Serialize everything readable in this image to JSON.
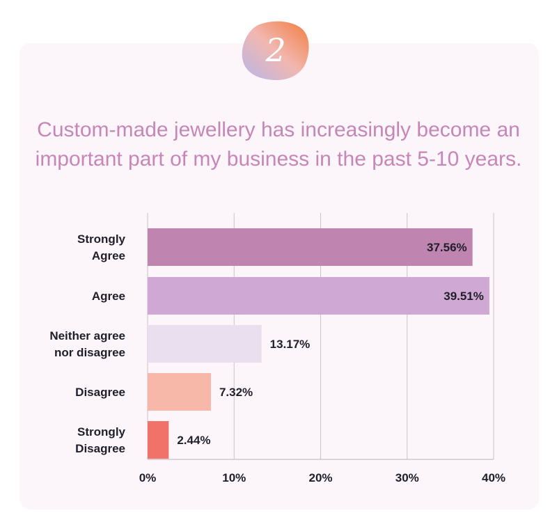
{
  "badge": {
    "number": "2"
  },
  "title_lines": [
    "Custom-made jewellery has increasingly become an",
    "important part of my business in the past 5-10 years."
  ],
  "chart_data": {
    "type": "bar",
    "orientation": "horizontal",
    "title": "Custom-made jewellery has increasingly become an important part of my business in the past 5-10 years.",
    "categories": [
      "Strongly Agree",
      "Agree",
      "Neither agree nor disagree",
      "Disagree",
      "Strongly Disagree"
    ],
    "category_label_lines": [
      [
        "Strongly",
        "Agree"
      ],
      [
        "Agree"
      ],
      [
        "Neither agree",
        "nor disagree"
      ],
      [
        "Disagree"
      ],
      [
        "Strongly",
        "Disagree"
      ]
    ],
    "values": [
      37.56,
      39.51,
      13.17,
      7.32,
      2.44
    ],
    "value_labels": [
      "37.56%",
      "39.51%",
      "13.17%",
      "7.32%",
      "2.44%"
    ],
    "colors": [
      "#c084b1",
      "#cfa9d3",
      "#e9dfee",
      "#f8b8a9",
      "#f07268"
    ],
    "xlim": [
      0,
      40
    ],
    "xticks": [
      0,
      10,
      20,
      30,
      40
    ],
    "xtick_labels": [
      "0%",
      "10%",
      "20%",
      "30%",
      "40%"
    ],
    "grid": true,
    "label_color": "#1f1f2a"
  }
}
